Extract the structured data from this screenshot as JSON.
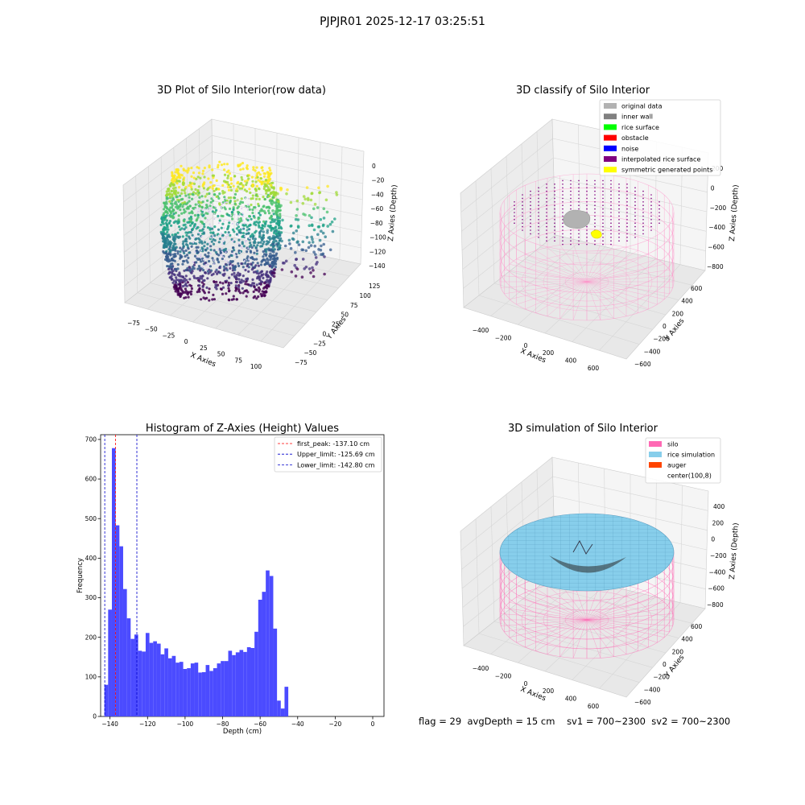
{
  "figure": {
    "suptitle": "PJPJR01 2025-12-17 03:25:51",
    "status": {
      "flag": "flag = 29",
      "avg_depth": "avgDepth = 15 cm",
      "sv1": "sv1 = 700~2300",
      "sv2": "sv2 = 700~2300"
    }
  },
  "colors": {
    "original": "#b2b2b2",
    "inner_wall": "#808080",
    "rice_surface": "#00ff00",
    "obstacle": "#ff0000",
    "noise": "#0000ff",
    "interpolated": "#800080",
    "symmetric": "#ffff00",
    "silo": "#ff69b4",
    "rice_sim": "#87ceeb",
    "auger": "#ff4500",
    "hist_bar": "#4b4bff",
    "peak_line": "#ff0000",
    "limit_line": "#0000cc"
  },
  "chart_data": [
    {
      "type": "scatter",
      "projection": "3d",
      "title": "3D Plot of Silo Interior(row data)",
      "xlabel": "X Axies",
      "ylabel": "Y Axies",
      "zlabel": "Z Axies (Depth)",
      "x_ticks": [
        "−75",
        "−50",
        "−25",
        "0",
        "25",
        "50",
        "75",
        "100"
      ],
      "y_ticks": [
        "−75",
        "−50",
        "−25",
        "0",
        "25",
        "50",
        "75",
        "100",
        "125"
      ],
      "z_ticks": [
        "0",
        "−20",
        "−40",
        "−60",
        "−80",
        "−100",
        "−120",
        "−140"
      ],
      "xlim": [
        -85,
        110
      ],
      "ylim": [
        -80,
        130
      ],
      "zlim": [
        -150,
        5
      ],
      "colormap": "viridis"
    },
    {
      "type": "scatter",
      "projection": "3d",
      "title": "3D classify of Silo Interior",
      "xlabel": "X Axies",
      "ylabel": "Y Axies",
      "zlabel": "Z Axies (Depth)",
      "x_ticks": [
        "−400",
        "−200",
        "0",
        "200",
        "400",
        "600"
      ],
      "y_ticks": [
        "−600",
        "−400",
        "−200",
        "0",
        "200",
        "400",
        "600"
      ],
      "z_ticks": [
        "200",
        "0",
        "−200",
        "−400",
        "−600",
        "−800"
      ],
      "legend": {
        "location": "upper-right",
        "entries": [
          "original data",
          "inner wall",
          "rice surface",
          "obstacle",
          "noise",
          "interpolated rice surface",
          "symmetric generated points"
        ]
      }
    },
    {
      "type": "bar",
      "title": "Histogram of Z-Axies (Height) Values",
      "xlabel": "Depth (cm)",
      "ylabel": "Frequency",
      "xlim": [
        -145,
        6
      ],
      "ylim": [
        0,
        712
      ],
      "x_ticks": [
        -140,
        -120,
        -100,
        -80,
        -60,
        -40,
        -20,
        0
      ],
      "x_tick_labels": [
        "−140",
        "−120",
        "−100",
        "−80",
        "−60",
        "−40",
        "−20",
        "0"
      ],
      "y_ticks": [
        0,
        100,
        200,
        300,
        400,
        500,
        600,
        700
      ],
      "bin_start": -143.0,
      "bin_width": 2.0,
      "values": [
        80,
        270,
        678,
        483,
        430,
        322,
        248,
        196,
        207,
        166,
        164,
        211,
        186,
        190,
        184,
        157,
        172,
        147,
        153,
        136,
        138,
        120,
        122,
        134,
        136,
        111,
        112,
        130,
        115,
        122,
        134,
        140,
        140,
        166,
        155,
        162,
        168,
        163,
        175,
        173,
        214,
        295,
        315,
        369,
        355,
        222,
        40,
        20,
        75
      ],
      "vlines": [
        {
          "x": -137.1,
          "kind": "peak"
        },
        {
          "x": -125.69,
          "kind": "limit"
        },
        {
          "x": -142.8,
          "kind": "limit"
        }
      ],
      "legend": {
        "location": "upper-right",
        "entries": [
          "first_peak: -137.10 cm",
          "Upper_limit: -125.69 cm",
          "Lower_limit: -142.80 cm"
        ]
      }
    },
    {
      "type": "surface",
      "projection": "3d",
      "title": "3D simulation of Silo Interior",
      "xlabel": "X Axies",
      "ylabel": "Y Axies",
      "zlabel": "Z Axies (Depth)",
      "x_ticks": [
        "−400",
        "−200",
        "0",
        "200",
        "400",
        "600"
      ],
      "y_ticks": [
        "−600",
        "−400",
        "−200",
        "0",
        "200",
        "400",
        "600"
      ],
      "z_ticks": [
        "400",
        "200",
        "0",
        "−200",
        "−400",
        "−600",
        "−800"
      ],
      "legend": {
        "location": "upper-right",
        "entries": [
          "silo",
          "rice simulation",
          "auger",
          "center(100,8)"
        ]
      }
    }
  ]
}
